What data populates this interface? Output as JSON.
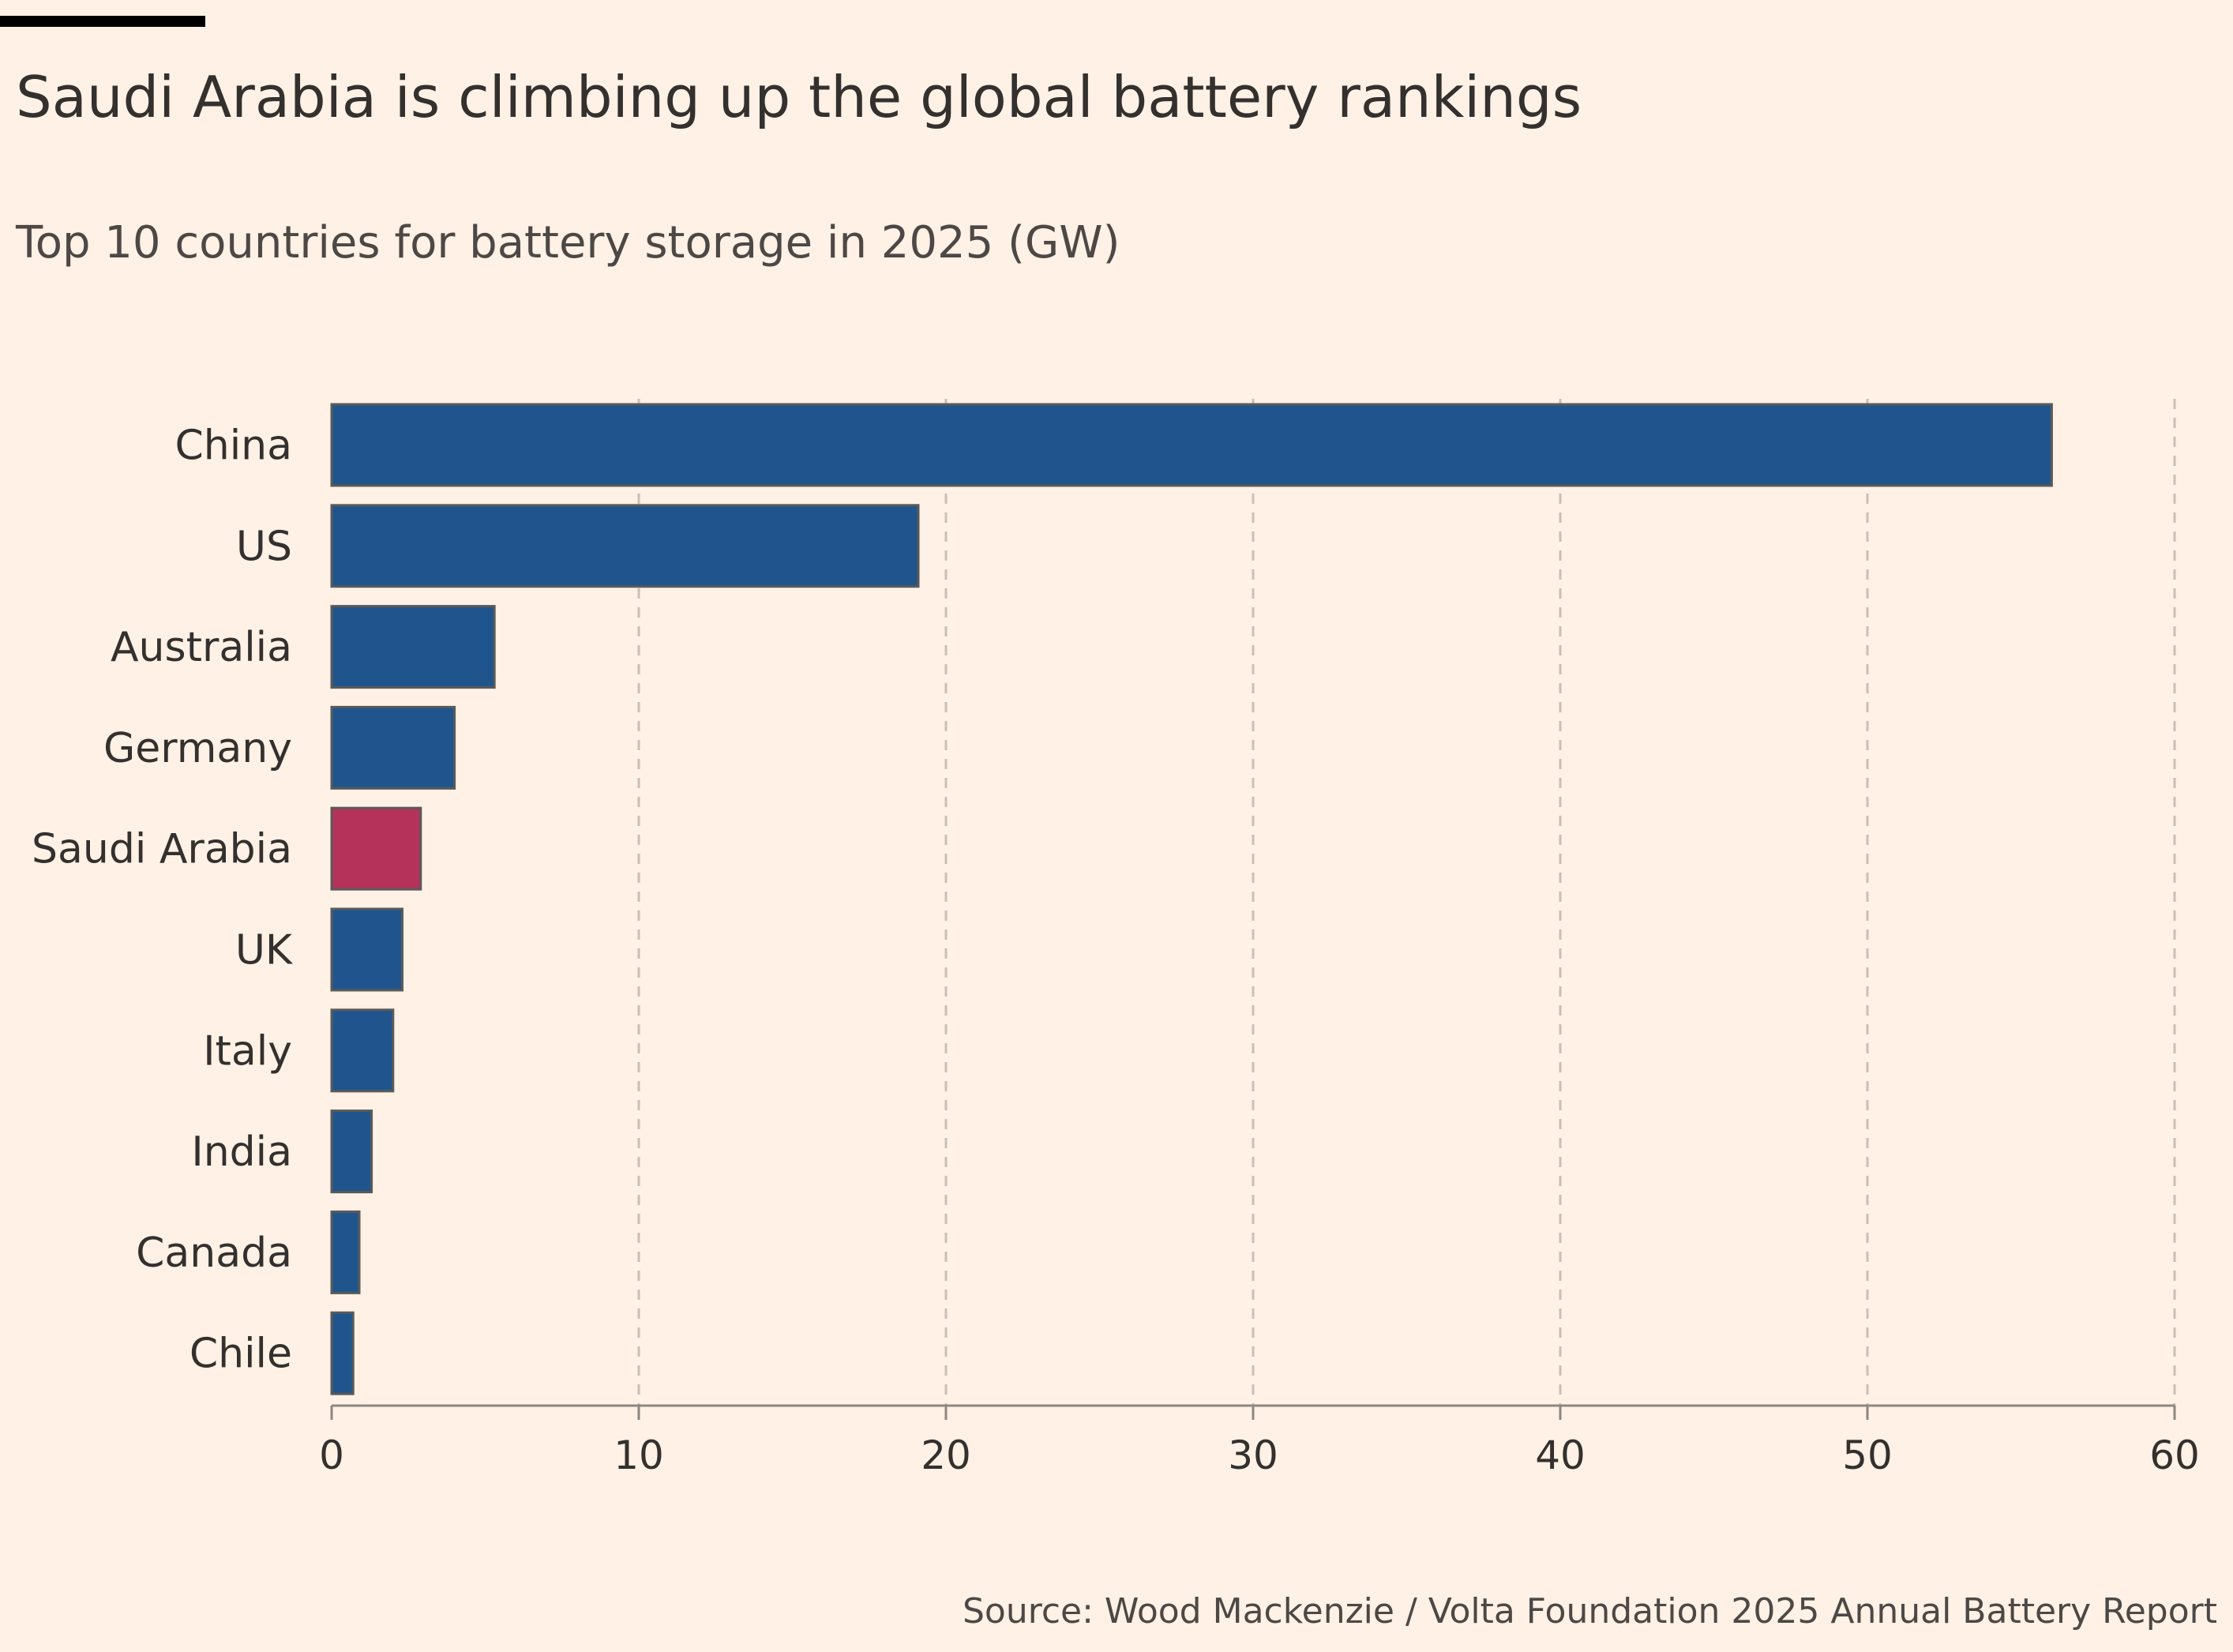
{
  "header": {
    "title": "Saudi Arabia is climbing up the global battery rankings",
    "subtitle": "Top 10 countries for battery storage in 2025 (GW)"
  },
  "footer": {
    "source": "Source: Wood Mackenzie / Volta Foundation 2025 Annual Battery Report"
  },
  "chart_data": {
    "type": "bar",
    "orientation": "horizontal",
    "title": "Saudi Arabia is climbing up the global battery rankings",
    "subtitle": "Top 10 countries for battery storage in 2025 (GW)",
    "categories": [
      "China",
      "US",
      "Australia",
      "Germany",
      "Saudi Arabia",
      "UK",
      "Italy",
      "India",
      "Canada",
      "Chile"
    ],
    "values": [
      56,
      19.1,
      5.3,
      4.0,
      2.9,
      2.3,
      2.0,
      1.3,
      0.9,
      0.7
    ],
    "highlight": "Saudi Arabia",
    "colors": {
      "bar": "#1F558C",
      "highlight": "#B5325A",
      "bar_outline": "#5A5A5A",
      "grid": "#C9BFB6",
      "axis": "#8C8781",
      "text": "#33302E"
    },
    "xlim": [
      0,
      60
    ],
    "xticks": [
      0,
      10,
      20,
      30,
      40,
      50,
      60
    ],
    "grid": "vertical dashed",
    "legend": "none"
  }
}
